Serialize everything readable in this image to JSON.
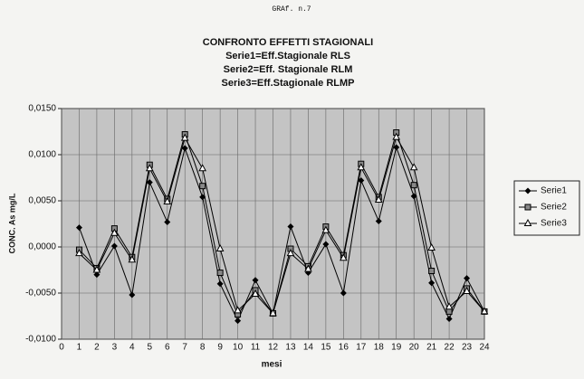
{
  "chart_data": {
    "type": "line",
    "page_label": "GRAf. n.7",
    "title": "CONFRONTO EFFETTI STAGIONALI",
    "subtitle": [
      "Serie1=Eff.Stagionale RLS",
      "Serie2=Eff. Stagionale RLM",
      "Serie3=Eff.Stagionale RLMP"
    ],
    "xlabel": "mesi",
    "ylabel": "CONC. As mg/L",
    "x": [
      1,
      2,
      3,
      4,
      5,
      6,
      7,
      8,
      9,
      10,
      11,
      12,
      13,
      14,
      15,
      16,
      17,
      18,
      19,
      20,
      21,
      22,
      23,
      24
    ],
    "series": [
      {
        "name": "Serie1",
        "color": "#000000",
        "marker": "diamond",
        "values": [
          0.0021,
          -0.003,
          0.0001,
          -0.0052,
          0.007,
          0.0027,
          0.0107,
          0.0054,
          -0.004,
          -0.008,
          -0.0036,
          -0.0072,
          0.0022,
          -0.0028,
          0.0003,
          -0.005,
          0.0072,
          0.0028,
          0.0108,
          0.0055,
          -0.0039,
          -0.0078,
          -0.0034,
          -0.007
        ]
      },
      {
        "name": "Serie2",
        "color": "#000000",
        "marker": "square",
        "values": [
          -0.0003,
          -0.0023,
          0.002,
          -0.0011,
          0.0089,
          0.0052,
          0.0122,
          0.0066,
          -0.0028,
          -0.0073,
          -0.0047,
          -0.0072,
          -0.0002,
          -0.0021,
          0.0022,
          -0.0009,
          0.009,
          0.0054,
          0.0124,
          0.0067,
          -0.0026,
          -0.007,
          -0.0045,
          -0.007
        ]
      },
      {
        "name": "Serie3",
        "color": "#000000",
        "marker": "triangle",
        "values": [
          -0.0007,
          -0.0025,
          0.0015,
          -0.0014,
          0.0085,
          0.0049,
          0.0118,
          0.0085,
          -0.0002,
          -0.0069,
          -0.0051,
          -0.0072,
          -0.0007,
          -0.0024,
          0.0018,
          -0.0012,
          0.0086,
          0.0051,
          0.0119,
          0.0086,
          -0.0001,
          -0.0065,
          -0.0048,
          -0.007
        ]
      }
    ],
    "xlim": [
      0,
      24
    ],
    "xticks": [
      0,
      1,
      2,
      3,
      4,
      5,
      6,
      7,
      8,
      9,
      10,
      11,
      12,
      13,
      14,
      15,
      16,
      17,
      18,
      19,
      20,
      21,
      22,
      23,
      24
    ],
    "ylim": [
      -0.01,
      0.015
    ],
    "yticks": [
      {
        "value": -0.01,
        "label": "-0,0100"
      },
      {
        "value": -0.005,
        "label": "-0,0050"
      },
      {
        "value": 0,
        "label": "0,0000"
      },
      {
        "value": 0.005,
        "label": "0,0050"
      },
      {
        "value": 0.01,
        "label": "0,0100"
      },
      {
        "value": 0.015,
        "label": "0,0150"
      }
    ],
    "grid": true,
    "legend": "right"
  }
}
